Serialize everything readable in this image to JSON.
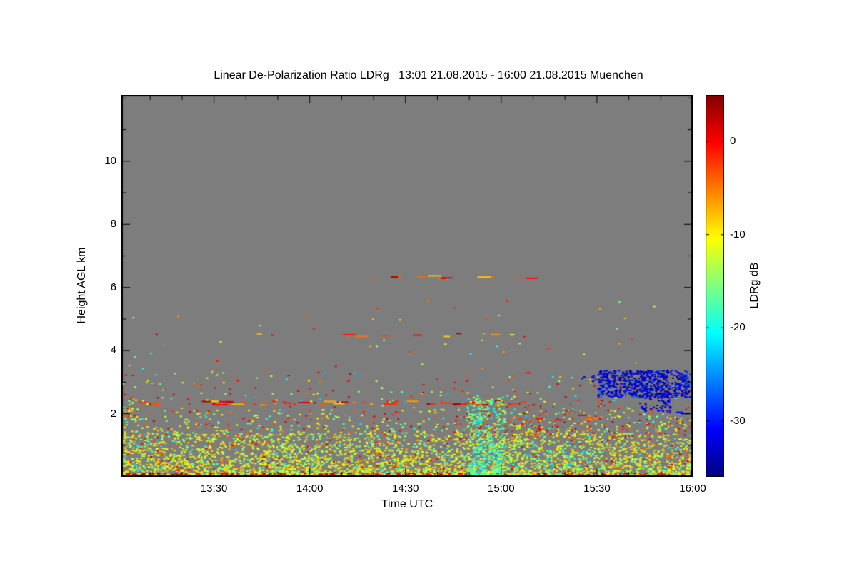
{
  "page": {
    "background": "#ffffff"
  },
  "chart_data": {
    "type": "heatmap",
    "title": "Linear De-Polarization Ratio LDRg   13:01 21.08.2015 - 16:00 21.08.2015 Muenchen",
    "instrument_quantity": "Linear De-Polarization Ratio LDRg",
    "time_start": "13:01 21.08.2015",
    "time_end": "16:00 21.08.2015",
    "station": "Muenchen",
    "xlabel": "Time UTC",
    "ylabel": "Height AGL km",
    "x_unit": "minutes after 13:00 UTC",
    "x_range": [
      1,
      180
    ],
    "y_range": [
      0,
      12.1
    ],
    "x_ticks": [
      {
        "t": 30,
        "label": "13:30"
      },
      {
        "t": 60,
        "label": "14:00"
      },
      {
        "t": 90,
        "label": "14:30"
      },
      {
        "t": 120,
        "label": "15:00"
      },
      {
        "t": 150,
        "label": "15:30"
      },
      {
        "t": 180,
        "label": "16:00"
      }
    ],
    "x_minor_step": 10,
    "y_ticks": [
      {
        "h": 2,
        "label": "2"
      },
      {
        "h": 4,
        "label": "4"
      },
      {
        "h": 6,
        "label": "6"
      },
      {
        "h": 8,
        "label": "8"
      },
      {
        "h": 10,
        "label": "10"
      }
    ],
    "y_minor_step": 1,
    "colorbar": {
      "label": "LDRg dB",
      "vmin": -36,
      "vmax": 5,
      "unit": "dB",
      "ticks": [
        {
          "v": 0,
          "label": "0"
        },
        {
          "v": -10,
          "label": "-10"
        },
        {
          "v": -20,
          "label": "-20"
        },
        {
          "v": -30,
          "label": "-30"
        }
      ]
    },
    "colors": {
      "background": "#7d7d7d",
      "frame": "#000000"
    },
    "features": [
      {
        "name": "boundary-layer-aerosol",
        "kind": "dots",
        "t": [
          1,
          180
        ],
        "h": [
          0,
          1.35
        ],
        "dot": [
          3,
          2
        ],
        "density": 0.55,
        "bias": 1.7,
        "values": [
          {
            "v": [
              -16,
              -8
            ],
            "w": 6
          },
          {
            "v": [
              -8,
              -3
            ],
            "w": 1.2
          },
          {
            "v": [
              -22,
              -17
            ],
            "w": 0.8
          },
          {
            "v": [
              -2,
              3
            ],
            "w": 0.5
          }
        ]
      },
      {
        "name": "boundary-layer-top",
        "kind": "dots",
        "t": [
          1,
          180
        ],
        "h": [
          1.3,
          2.1
        ],
        "dot": [
          3,
          2
        ],
        "density": 0.1,
        "bias": 1.4,
        "values": [
          {
            "v": [
              -15,
              -8
            ],
            "w": 3
          },
          {
            "v": [
              -6,
              2
            ],
            "w": 1.5
          },
          {
            "v": [
              -20,
              -16
            ],
            "w": 0.6
          }
        ]
      },
      {
        "name": "ground-echo-line",
        "kind": "dots",
        "t": [
          1,
          180
        ],
        "h": [
          0,
          0.09
        ],
        "dot": [
          4,
          2
        ],
        "density": 0.85,
        "bias": 1,
        "values": [
          {
            "v": [
              0,
              5
            ],
            "w": 2
          },
          {
            "v": [
              -14,
              -8
            ],
            "w": 1
          },
          {
            "v": [
              -20,
              -16
            ],
            "w": 0.4
          }
        ]
      },
      {
        "name": "left-edge-column",
        "kind": "dots",
        "t": [
          1,
          6
        ],
        "h": [
          1.8,
          2.6
        ],
        "dot": [
          3,
          2
        ],
        "density": 0.18,
        "bias": 1,
        "values": [
          {
            "v": [
              -16,
              -8
            ],
            "w": 2
          },
          {
            "v": [
              -4,
              2
            ],
            "w": 1
          },
          {
            "v": [
              -22,
              -17
            ],
            "w": 0.7
          }
        ]
      },
      {
        "name": "insect-line-2.3km",
        "kind": "dash",
        "t": [
          1,
          130
        ],
        "h": [
          2.25,
          2.42
        ],
        "dot": [
          10,
          2
        ],
        "density": 0.5,
        "values": [
          {
            "v": [
              -4,
              4
            ],
            "w": 3
          },
          {
            "v": [
              -9,
              -5
            ],
            "w": 1
          }
        ]
      },
      {
        "name": "mid-level-speckle",
        "kind": "dots",
        "t": [
          1,
          180
        ],
        "h": [
          1.4,
          3.3
        ],
        "dot": [
          3,
          2
        ],
        "density": 0.025,
        "bias": 1,
        "values": [
          {
            "v": [
              -5,
              3
            ],
            "w": 2
          },
          {
            "v": [
              -16,
              -8
            ],
            "w": 2
          },
          {
            "v": [
              -24,
              -17
            ],
            "w": 1
          }
        ]
      },
      {
        "name": "high-level-sparse-speckle",
        "kind": "dots",
        "t": [
          3,
          168
        ],
        "h": [
          3.3,
          5.6
        ],
        "dot": [
          3,
          2
        ],
        "density": 0.004,
        "bias": 1,
        "values": [
          {
            "v": [
              -8,
              0
            ],
            "w": 2
          },
          {
            "v": [
              -18,
              -10
            ],
            "w": 1
          },
          {
            "v": [
              -24,
              -18
            ],
            "w": 0.7
          }
        ]
      },
      {
        "name": "thin-layer-4.5km",
        "kind": "dash",
        "t": [
          11,
          126
        ],
        "h": [
          4.42,
          4.58
        ],
        "dot": [
          8,
          2
        ],
        "density": 0.13,
        "values": [
          {
            "v": [
              -12,
              -2
            ],
            "w": 2
          },
          {
            "v": [
              -2,
              3
            ],
            "w": 1
          }
        ]
      },
      {
        "name": "thin-layer-6.3km",
        "kind": "dash",
        "t": [
          76,
          128
        ],
        "h": [
          6.25,
          6.4
        ],
        "dot": [
          8,
          2
        ],
        "density": 0.3,
        "values": [
          {
            "v": [
              -6,
              3
            ],
            "w": 3
          },
          {
            "v": [
              -10,
              -6
            ],
            "w": 1
          }
        ]
      },
      {
        "name": "green-plume-15:00",
        "kind": "dots",
        "t": [
          109,
          121
        ],
        "h": [
          0,
          2.5
        ],
        "dot": [
          3,
          2
        ],
        "density": 0.5,
        "bias": 1.8,
        "values": [
          {
            "v": [
              -22,
              -14
            ],
            "w": 4
          },
          {
            "v": [
              -13,
              -9
            ],
            "w": 1
          }
        ]
      },
      {
        "name": "cyan-band-right",
        "kind": "dots",
        "t": [
          113,
          152
        ],
        "h": [
          0.2,
          1.1
        ],
        "dot": [
          3,
          2
        ],
        "density": 0.12,
        "bias": 1.2,
        "values": [
          {
            "v": [
              -24,
              -16
            ],
            "w": 3
          },
          {
            "v": [
              -14,
              -9
            ],
            "w": 1
          }
        ]
      },
      {
        "name": "red-speckle-mid-right",
        "kind": "dots",
        "t": [
          105,
          180
        ],
        "h": [
          1.2,
          2.3
        ],
        "dot": [
          2,
          2
        ],
        "density": 0.04,
        "bias": 1,
        "values": [
          {
            "v": [
              -3,
              4
            ],
            "w": 3
          },
          {
            "v": [
              -18,
              -10
            ],
            "w": 1
          }
        ]
      },
      {
        "name": "orange-dashes-1.8km-right",
        "kind": "dash",
        "t": [
          120,
          156
        ],
        "h": [
          1.7,
          1.98
        ],
        "dot": [
          8,
          2
        ],
        "density": 0.2,
        "values": [
          {
            "v": [
              -6,
              3
            ],
            "w": 2
          },
          {
            "v": [
              -12,
              -7
            ],
            "w": 1
          }
        ]
      },
      {
        "name": "blue-cloud-fringe",
        "kind": "dots",
        "t": [
          145,
          151
        ],
        "h": [
          3.0,
          3.4
        ],
        "dot": [
          3,
          2
        ],
        "density": 0.12,
        "bias": 1,
        "values": [
          {
            "v": [
              -36,
              -29
            ],
            "w": 1
          }
        ]
      },
      {
        "name": "blue-cloud-main",
        "kind": "dots",
        "t": [
          150,
          179
        ],
        "h": [
          2.5,
          3.35
        ],
        "dot": [
          3,
          2
        ],
        "density": 0.8,
        "bias": 1,
        "values": [
          {
            "v": [
              -36,
              -30
            ],
            "w": 5
          },
          {
            "v": [
              -29,
              -26
            ],
            "w": 0.6
          }
        ]
      },
      {
        "name": "blue-cloud-tail",
        "kind": "dots",
        "t": [
          163,
          173
        ],
        "h": [
          2.05,
          2.6
        ],
        "dot": [
          3,
          2
        ],
        "density": 0.45,
        "bias": 1,
        "values": [
          {
            "v": [
              -36,
              -30
            ],
            "w": 1
          }
        ]
      },
      {
        "name": "blue-dash-2km-right-edge",
        "kind": "dash",
        "t": [
          172,
          179
        ],
        "h": [
          1.9,
          2.1
        ],
        "dot": [
          8,
          2
        ],
        "density": 0.5,
        "values": [
          {
            "v": [
              -36,
              -30
            ],
            "w": 1
          }
        ]
      }
    ]
  }
}
